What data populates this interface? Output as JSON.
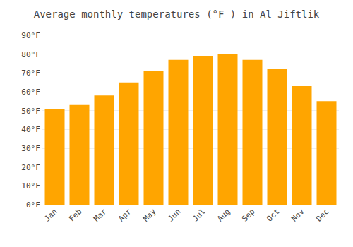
{
  "chart_data": {
    "type": "bar",
    "title": "Average monthly temperatures (°F ) in Al Jiftlik",
    "categories": [
      "Jan",
      "Feb",
      "Mar",
      "Apr",
      "May",
      "Jun",
      "Jul",
      "Aug",
      "Sep",
      "Oct",
      "Nov",
      "Dec"
    ],
    "values": [
      51,
      53,
      58,
      65,
      71,
      77,
      79,
      80,
      77,
      72,
      63,
      55
    ],
    "color": "#FFA500",
    "ylim": [
      0,
      90
    ],
    "yticks": [
      {
        "value": 0,
        "label": "0°F"
      },
      {
        "value": 10,
        "label": "10°F"
      },
      {
        "value": 20,
        "label": "20°F"
      },
      {
        "value": 30,
        "label": "30°F"
      },
      {
        "value": 40,
        "label": "40°F"
      },
      {
        "value": 50,
        "label": "50°F"
      },
      {
        "value": 60,
        "label": "60°F"
      },
      {
        "value": 70,
        "label": "70°F"
      },
      {
        "value": 80,
        "label": "80°F"
      },
      {
        "value": 90,
        "label": "90°F"
      }
    ],
    "grid": true
  }
}
